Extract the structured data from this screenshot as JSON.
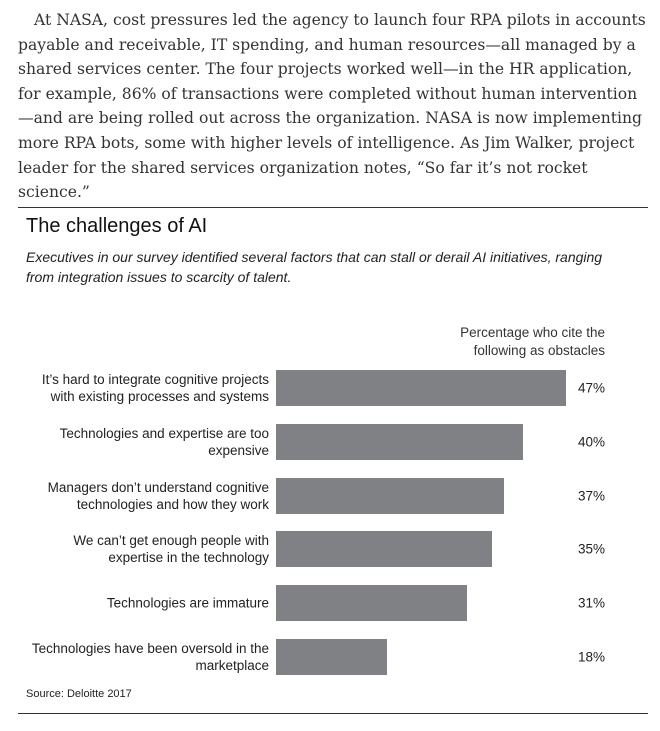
{
  "paragraph": "At NASA, cost pressures led the agency to launch four RPA pilots in accounts payable and receivable, IT spending, and human resources—all managed by a shared services center. The four projects worked well—in the HR application, for example, 86% of transactions were completed without human intervention—and are being rolled out across the organization. NASA is now implementing more RPA bots, some with higher levels of intelligence. As Jim Walker, project leader for the shared services organization notes, “So far it’s not rocket science.”",
  "chart_data": {
    "type": "bar",
    "orientation": "horizontal",
    "title": "The challenges of AI",
    "subtitle": "Executives in our survey identified several factors that can stall or derail AI initiatives, ranging from integration issues to scarcity of talent.",
    "value_header": "Percentage who cite the following as obstacles",
    "categories": [
      "It’s hard to integrate cognitive projects with existing processes and systems",
      "Technologies and expertise are too expensive",
      "Managers don’t understand cognitive technologies and how they work",
      "We can’t get enough people with expertise in the technology",
      "Technologies are immature",
      "Technologies have been oversold in the marketplace"
    ],
    "values": [
      47,
      40,
      37,
      35,
      31,
      18
    ],
    "value_labels": [
      "47%",
      "40%",
      "37%",
      "35%",
      "31%",
      "18%"
    ],
    "bar_color": "#808184",
    "grid": false,
    "source": "Source: Deloitte 2017"
  }
}
